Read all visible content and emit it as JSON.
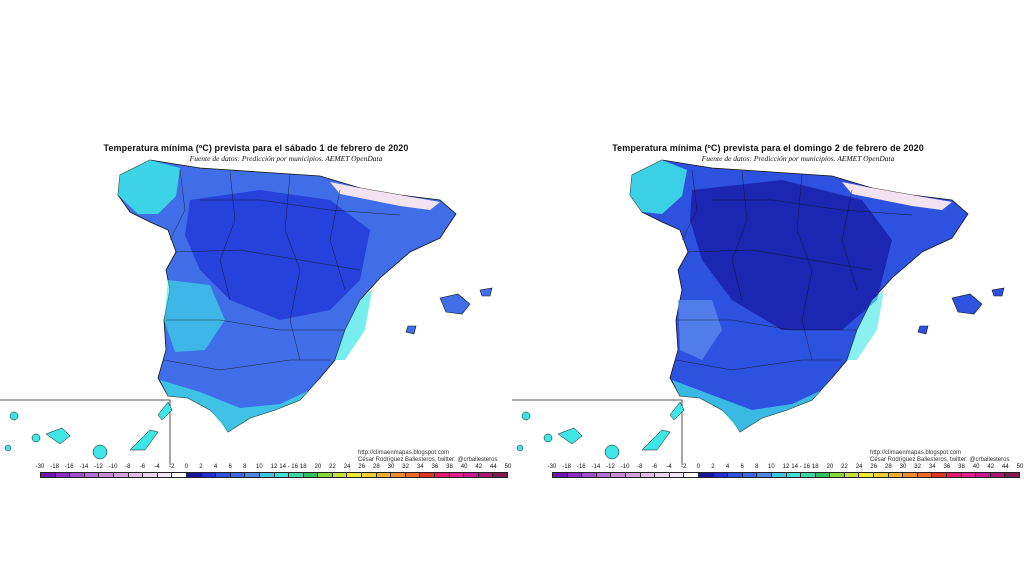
{
  "panels": [
    {
      "title": "Temperatura mínima (ºC) prevista para el sábado 1 de febrero de 2020",
      "source": "Fuente de datos: Predicción por municipios. AEMET OpenData",
      "credit_url": "http://climaenmapas.blogspot.com",
      "credit_author": "César Rodríguez Ballesteros, twitter: @crballesteros"
    },
    {
      "title": "Temperatura mínima (ºC) prevista para el domingo 2 de febrero de 2020",
      "source": "Fuente de datos: Predicción por municipios. AEMET OpenData",
      "credit_url": "http://climaenmapas.blogspot.com",
      "credit_author": "César Rodríguez Ballesteros, twitter: @crballesteros"
    }
  ],
  "scale_labels": [
    "-30",
    "-18",
    "-16",
    "-14",
    "-12",
    "-10",
    "-8",
    "-6",
    "-4",
    "-2",
    "0",
    "2",
    "4",
    "6",
    "8",
    "10",
    "12",
    "14 - 16",
    "18",
    "20",
    "22",
    "24",
    "26",
    "28",
    "30",
    "32",
    "34",
    "36",
    "38",
    "40",
    "42",
    "44",
    "50"
  ],
  "scale_colors": [
    "#6a1aa8",
    "#8a2fc0",
    "#a24fcf",
    "#b56fd8",
    "#c88ad9",
    "#d6a2df",
    "#e2bde5",
    "#ecd4ec",
    "#f4e8f4",
    "#ffffff",
    "#1414a0",
    "#1f2fd0",
    "#2e52e0",
    "#3a6ae6",
    "#4f86e8",
    "#3ec4e4",
    "#3fe0d8",
    "#40d6a8",
    "#35c060",
    "#8ad63a",
    "#c6e23a",
    "#f0ea30",
    "#f4cf2e",
    "#f3b02a",
    "#f08c26",
    "#ea6a22",
    "#e0321c",
    "#e01a6a",
    "#e0208f",
    "#c81a8a",
    "#a81a70",
    "#861850"
  ],
  "colors": {
    "deep_blue": "#1d2fd6",
    "mid_blue": "#3f6ee8",
    "light_blue": "#5f90ec",
    "cyan": "#3ee6e6",
    "snow": "#f1e4f0",
    "outline": "#141414"
  }
}
